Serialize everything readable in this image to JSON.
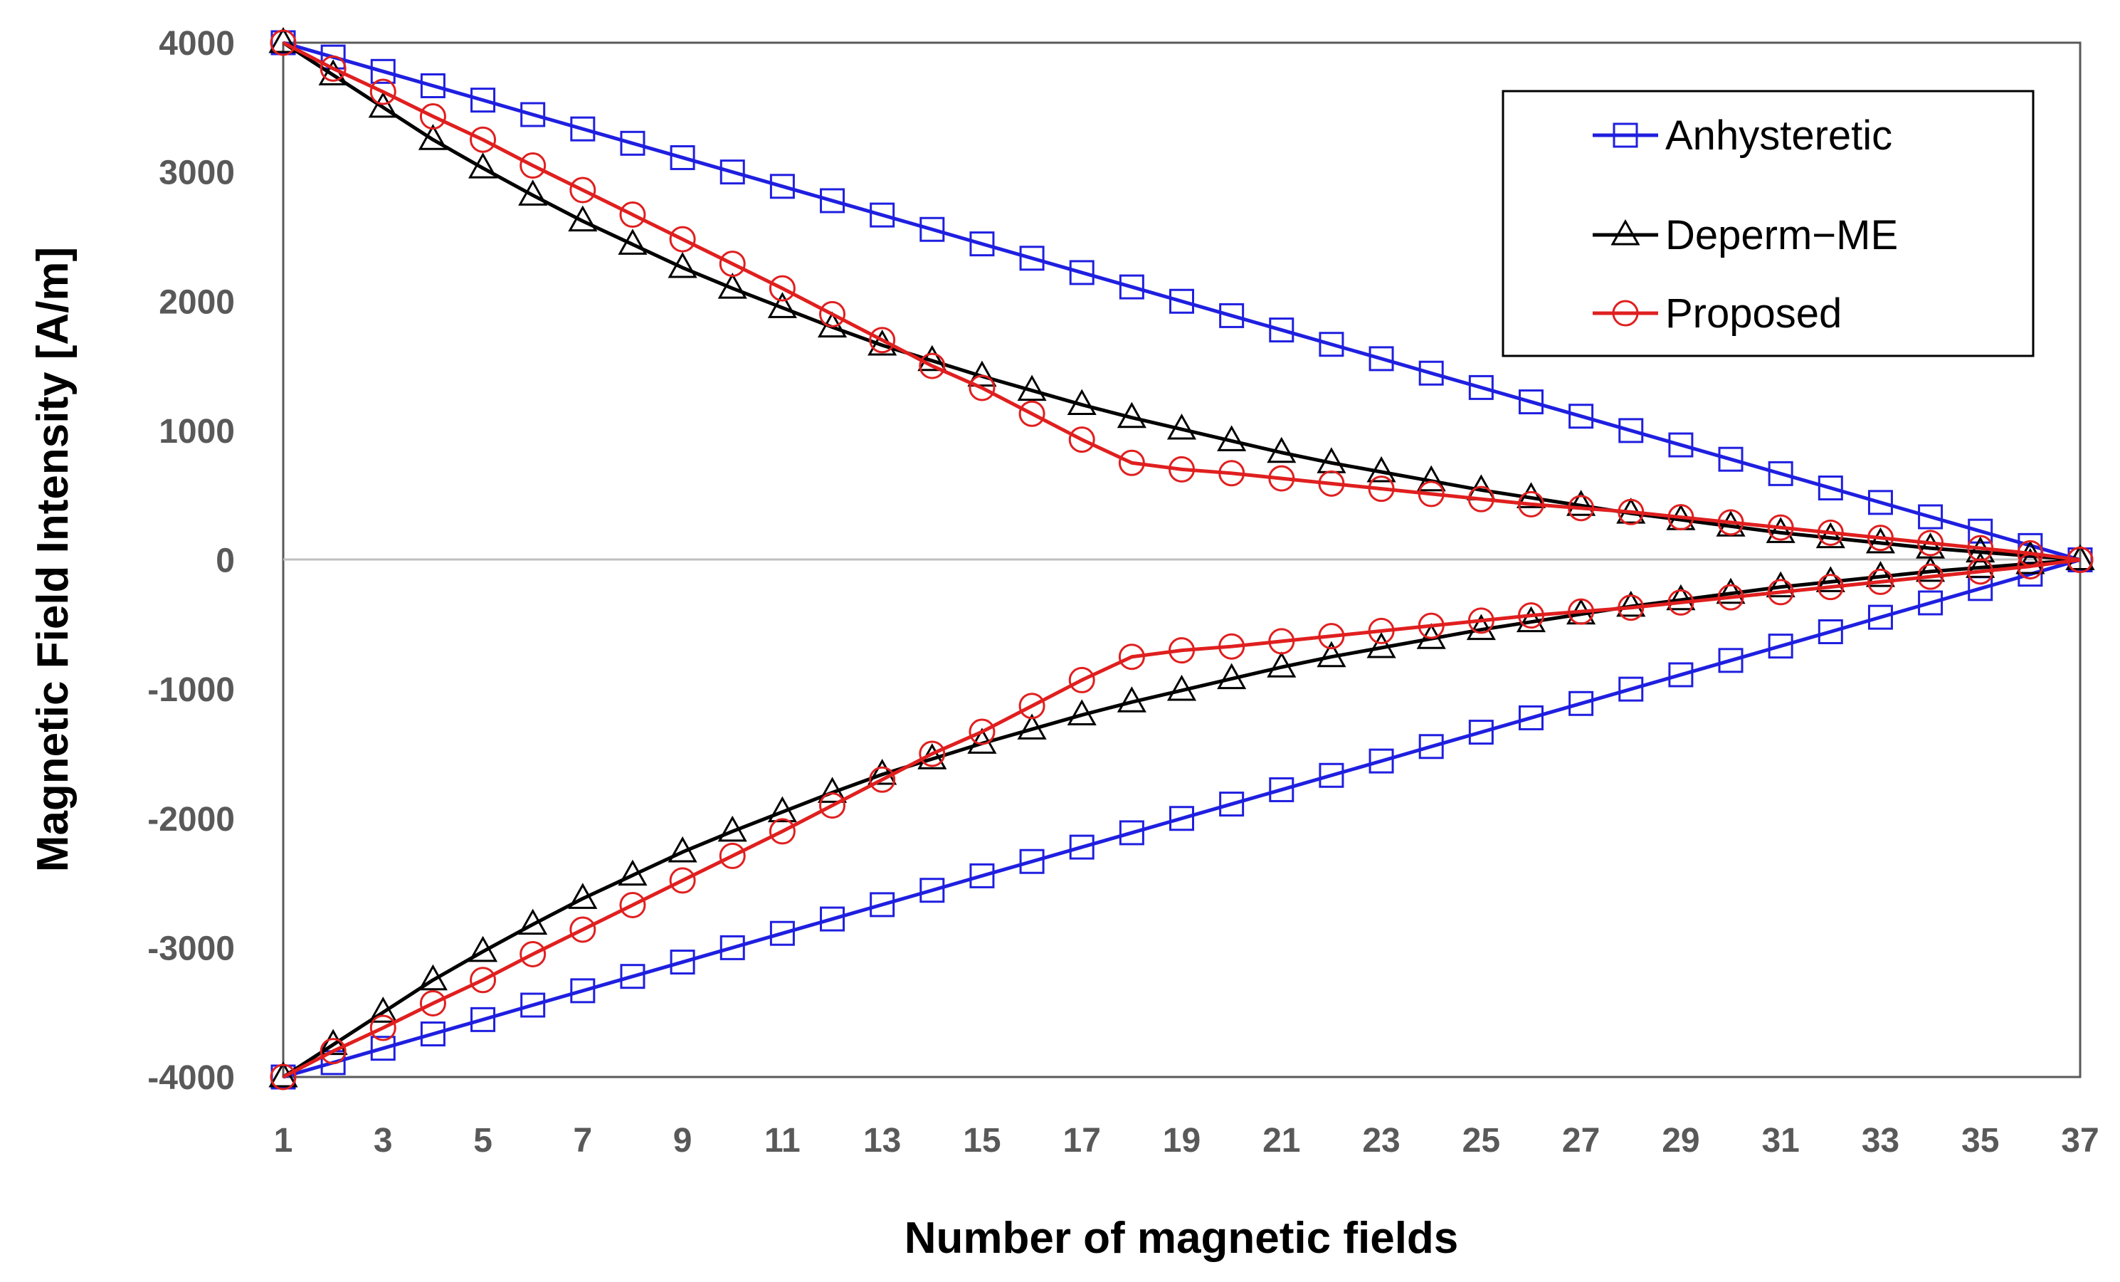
{
  "chart_data": {
    "type": "line",
    "title": "",
    "xlabel": "Number of magnetic fields",
    "ylabel": "Magnetic Field Intensity [A/m]",
    "xlim": [
      1,
      37
    ],
    "ylim": [
      -4000,
      4000
    ],
    "x_ticks": [
      1,
      3,
      5,
      7,
      9,
      11,
      13,
      15,
      17,
      19,
      21,
      23,
      25,
      27,
      29,
      31,
      33,
      35,
      37
    ],
    "y_ticks": [
      4000,
      3000,
      2000,
      1000,
      0,
      -1000,
      -2000,
      -3000,
      -4000
    ],
    "legend_position": "top-right",
    "series": [
      {
        "name": "Anhysteretic",
        "color": "#1f1fe0",
        "marker": "square",
        "positive": [
          4000,
          3889,
          3778,
          3667,
          3556,
          3444,
          3333,
          3222,
          3111,
          3000,
          2889,
          2778,
          2667,
          2556,
          2444,
          2333,
          2222,
          2111,
          2000,
          1889,
          1778,
          1667,
          1556,
          1444,
          1333,
          1222,
          1111,
          1000,
          889,
          778,
          667,
          556,
          444,
          333,
          222,
          111,
          0
        ],
        "negative": [
          -4000,
          -3889,
          -3778,
          -3667,
          -3556,
          -3444,
          -3333,
          -3222,
          -3111,
          -3000,
          -2889,
          -2778,
          -2667,
          -2556,
          -2444,
          -2333,
          -2222,
          -2111,
          -2000,
          -1889,
          -1778,
          -1667,
          -1556,
          -1444,
          -1333,
          -1222,
          -1111,
          -1000,
          -889,
          -778,
          -667,
          -556,
          -444,
          -333,
          -222,
          -111,
          0
        ]
      },
      {
        "name": "Deperm−ME",
        "color": "#000000",
        "marker": "triangle",
        "positive": [
          4000,
          3750,
          3500,
          3250,
          3030,
          2820,
          2620,
          2440,
          2260,
          2100,
          1950,
          1800,
          1660,
          1540,
          1420,
          1310,
          1200,
          1100,
          1010,
          920,
          830,
          750,
          680,
          610,
          540,
          480,
          420,
          360,
          310,
          260,
          210,
          170,
          130,
          90,
          60,
          30,
          0
        ],
        "negative": [
          -4000,
          -3750,
          -3500,
          -3250,
          -3030,
          -2820,
          -2620,
          -2440,
          -2260,
          -2100,
          -1950,
          -1800,
          -1660,
          -1540,
          -1420,
          -1310,
          -1200,
          -1100,
          -1010,
          -920,
          -830,
          -750,
          -680,
          -610,
          -540,
          -480,
          -420,
          -360,
          -310,
          -260,
          -210,
          -170,
          -130,
          -90,
          -60,
          -30,
          0
        ]
      },
      {
        "name": "Proposed",
        "color": "#e01f1f",
        "marker": "circle",
        "positive": [
          4000,
          3800,
          3620,
          3430,
          3250,
          3050,
          2860,
          2670,
          2480,
          2290,
          2100,
          1900,
          1700,
          1500,
          1330,
          1130,
          930,
          750,
          700,
          670,
          630,
          590,
          550,
          510,
          470,
          430,
          400,
          370,
          330,
          290,
          250,
          210,
          170,
          130,
          90,
          50,
          0
        ],
        "negative": [
          -4000,
          -3800,
          -3620,
          -3430,
          -3250,
          -3050,
          -2860,
          -2670,
          -2480,
          -2290,
          -2100,
          -1900,
          -1700,
          -1500,
          -1330,
          -1130,
          -930,
          -750,
          -700,
          -670,
          -630,
          -590,
          -550,
          -510,
          -470,
          -430,
          -400,
          -370,
          -330,
          -290,
          -250,
          -210,
          -170,
          -130,
          -90,
          -50,
          0
        ]
      }
    ]
  }
}
